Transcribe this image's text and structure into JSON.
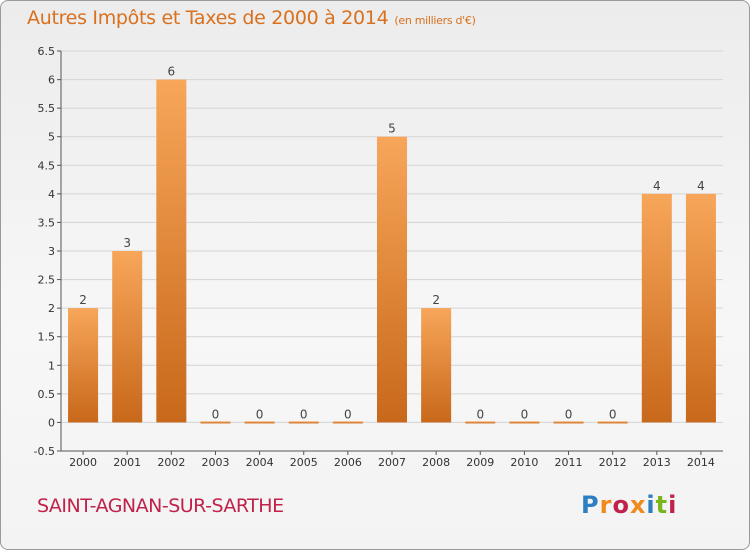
{
  "header": {
    "title": "Autres Impôts et Taxes de 2000 à 2014",
    "subtitle": "(en milliers d'€)"
  },
  "footer": {
    "commune": "SAINT-AGNAN-SUR-SARTHE",
    "logo": "Proxiti",
    "logo_colors": [
      "#2d7fc1",
      "#f08a1c",
      "#c0224a",
      "#f08a1c",
      "#2d7fc1",
      "#7ab51d",
      "#c0224a"
    ]
  },
  "colors": {
    "bar_light": "#f7a65a",
    "bar_dark": "#c8681a",
    "grid": "#d4d4d4",
    "title": "#d9701e"
  },
  "chart_data": {
    "type": "bar",
    "title": "Autres Impôts et Taxes de 2000 à 2014",
    "subtitle": "(en milliers d'€)",
    "categories": [
      "2000",
      "2001",
      "2002",
      "2003",
      "2004",
      "2005",
      "2006",
      "2007",
      "2008",
      "2009",
      "2010",
      "2011",
      "2012",
      "2013",
      "2014"
    ],
    "values": [
      2,
      3,
      6,
      0,
      0,
      0,
      0,
      5,
      2,
      0,
      0,
      0,
      0,
      4,
      4
    ],
    "value_labels": [
      "2",
      "3",
      "6",
      "0",
      "0",
      "0",
      "0",
      "5",
      "2",
      "0",
      "0",
      "0",
      "0",
      "4",
      "4"
    ],
    "ylim": [
      -0.5,
      6.5
    ],
    "yticks": [
      -0.5,
      0,
      0.5,
      1,
      1.5,
      2,
      2.5,
      3,
      3.5,
      4,
      4.5,
      5,
      5.5,
      6,
      6.5
    ],
    "ytick_labels": [
      "-0.5",
      "0",
      "0.5",
      "1",
      "1.5",
      "2",
      "2.5",
      "3",
      "3.5",
      "4",
      "4.5",
      "5",
      "5.5",
      "6",
      "6.5"
    ],
    "xlabel": "",
    "ylabel": "",
    "grid": true
  }
}
